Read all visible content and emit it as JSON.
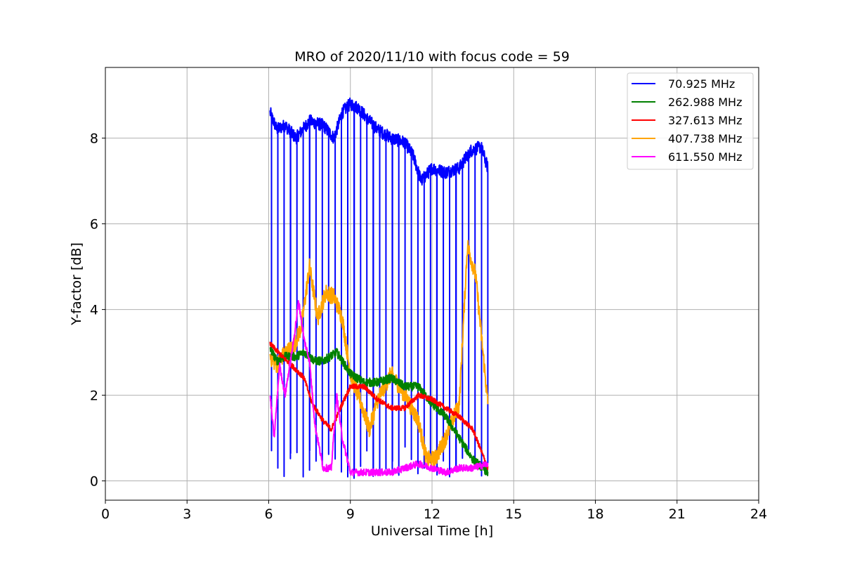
{
  "chart_data": {
    "type": "line",
    "title": "MRO of 2020/11/10 with focus code = 59",
    "xlabel": "Universal Time [h]",
    "ylabel": "Y-factor [dB]",
    "xlim": [
      0,
      24
    ],
    "ylim": [
      -0.45,
      9.65
    ],
    "xticks": [
      0,
      3,
      6,
      9,
      12,
      15,
      18,
      21,
      24
    ],
    "yticks": [
      0,
      2,
      4,
      6,
      8
    ],
    "grid": true,
    "legend_position": "top-right",
    "series": [
      {
        "name": "70.925 MHz",
        "color": "#0000ff",
        "noise": 0.15,
        "scan_pulses": {
          "start": 6.1,
          "end": 14.05,
          "count": 35,
          "dip_to": 0.0
        },
        "x": [
          6.05,
          6.3,
          6.6,
          7.0,
          7.5,
          8.0,
          8.4,
          8.7,
          9.0,
          9.3,
          9.7,
          10.0,
          10.5,
          11.0,
          11.3,
          11.6,
          12.0,
          12.5,
          13.0,
          13.4,
          13.8,
          14.05
        ],
        "y": [
          8.6,
          8.2,
          8.3,
          8.0,
          8.4,
          8.3,
          8.0,
          8.6,
          8.8,
          8.7,
          8.4,
          8.2,
          8.0,
          7.9,
          7.6,
          7.0,
          7.3,
          7.2,
          7.3,
          7.7,
          7.8,
          7.3
        ]
      },
      {
        "name": "262.988 MHz",
        "color": "#008000",
        "noise": 0.1,
        "x": [
          6.05,
          6.3,
          6.6,
          7.0,
          7.3,
          7.7,
          8.0,
          8.5,
          9.0,
          9.5,
          10.0,
          10.5,
          11.0,
          11.5,
          12.0,
          12.5,
          13.0,
          13.5,
          14.05
        ],
        "y": [
          3.1,
          2.8,
          2.9,
          2.9,
          3.0,
          2.8,
          2.8,
          3.0,
          2.5,
          2.3,
          2.3,
          2.4,
          2.2,
          2.2,
          1.8,
          1.5,
          1.0,
          0.5,
          0.2
        ]
      },
      {
        "name": "327.613 MHz",
        "color": "#ff0000",
        "noise": 0.06,
        "x": [
          6.05,
          6.5,
          7.0,
          7.3,
          7.6,
          8.0,
          8.3,
          8.7,
          9.0,
          9.5,
          10.0,
          10.5,
          11.0,
          11.5,
          12.0,
          12.5,
          13.0,
          13.5,
          14.05
        ],
        "y": [
          3.2,
          2.9,
          2.6,
          2.4,
          1.8,
          1.4,
          1.2,
          1.8,
          2.2,
          2.2,
          1.9,
          1.7,
          1.7,
          2.0,
          1.9,
          1.7,
          1.5,
          1.2,
          0.3
        ]
      },
      {
        "name": "407.738 MHz",
        "color": "#ffa500",
        "noise": 0.2,
        "x": [
          6.05,
          6.3,
          6.6,
          6.9,
          7.2,
          7.5,
          7.8,
          8.1,
          8.4,
          8.7,
          9.0,
          9.4,
          9.7,
          10.0,
          10.5,
          11.0,
          11.5,
          11.8,
          12.1,
          12.5,
          13.0,
          13.3,
          13.6,
          13.9,
          14.05
        ],
        "y": [
          2.9,
          2.7,
          3.0,
          3.1,
          3.6,
          5.0,
          3.8,
          4.4,
          4.3,
          3.8,
          2.5,
          1.8,
          1.2,
          1.9,
          2.5,
          2.0,
          1.4,
          0.5,
          0.5,
          1.0,
          1.8,
          5.5,
          4.8,
          2.8,
          1.8
        ]
      },
      {
        "name": "611.550 MHz",
        "color": "#ff00ff",
        "noise": 0.08,
        "x": [
          6.05,
          6.2,
          6.4,
          6.6,
          6.9,
          7.1,
          7.3,
          7.5,
          7.7,
          8.0,
          8.3,
          8.5,
          8.7,
          9.0,
          9.5,
          10.0,
          10.5,
          11.0,
          11.5,
          12.0,
          12.5,
          13.0,
          13.5,
          14.05
        ],
        "y": [
          2.0,
          1.0,
          2.7,
          2.0,
          3.2,
          4.2,
          3.3,
          2.8,
          1.3,
          0.3,
          0.3,
          2.0,
          1.0,
          0.2,
          0.2,
          0.2,
          0.2,
          0.3,
          0.4,
          0.3,
          0.2,
          0.3,
          0.3,
          0.4
        ]
      }
    ]
  }
}
